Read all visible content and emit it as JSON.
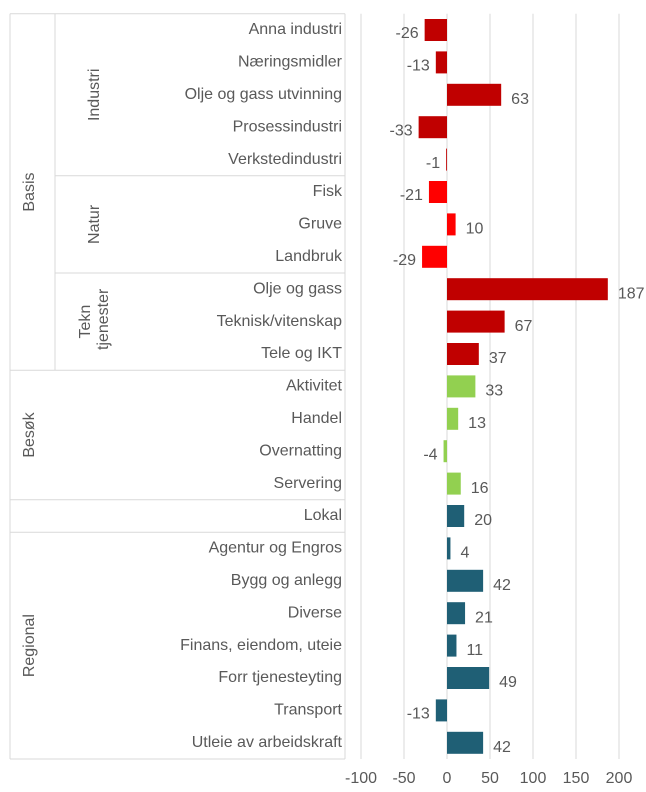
{
  "chart_data": {
    "type": "bar",
    "orientation": "horizontal",
    "xlim": [
      -100,
      200
    ],
    "xticks": [
      -100,
      -50,
      0,
      50,
      100,
      150,
      200
    ],
    "grid": true,
    "groups": [
      {
        "name": "Basis",
        "subgroups": [
          {
            "name": "Industri",
            "color": "#c00000",
            "categories": [
              "Anna industri",
              "Næringsmidler",
              "Olje og gass utvinning",
              "Prosessindustri",
              "Verkstedindustri"
            ],
            "values": [
              -26,
              -13,
              63,
              -33,
              -1
            ]
          },
          {
            "name": "Natur",
            "color": "#ff0000",
            "categories": [
              "Fisk",
              "Gruve",
              "Landbruk"
            ],
            "values": [
              -21,
              10,
              -29
            ]
          },
          {
            "name": "Tekn tjenester",
            "color": "#c00000",
            "categories": [
              "Olje og gass",
              "Teknisk/vitenskap",
              "Tele og IKT"
            ],
            "values": [
              187,
              67,
              37
            ]
          }
        ]
      },
      {
        "name": "Besøk",
        "subgroups": [
          {
            "color": "#92d050",
            "categories": [
              "Aktivitet",
              "Handel",
              "Overnatting",
              "Servering"
            ],
            "values": [
              33,
              13,
              -4,
              16
            ]
          }
        ]
      },
      {
        "subgroups": [
          {
            "color": "#1f5f75",
            "categories": [
              "Lokal"
            ],
            "values": [
              20
            ]
          }
        ]
      },
      {
        "name": "Regional",
        "subgroups": [
          {
            "color": "#1f5f75",
            "categories": [
              "Agentur og Engros",
              "Bygg og anlegg",
              "Diverse",
              "Finans, eiendom, uteie",
              "Forr tjenesteyting",
              "Transport",
              "Utleie av arbeidskraft"
            ],
            "values": [
              4,
              42,
              21,
              11,
              49,
              -13,
              42
            ]
          }
        ]
      }
    ]
  }
}
